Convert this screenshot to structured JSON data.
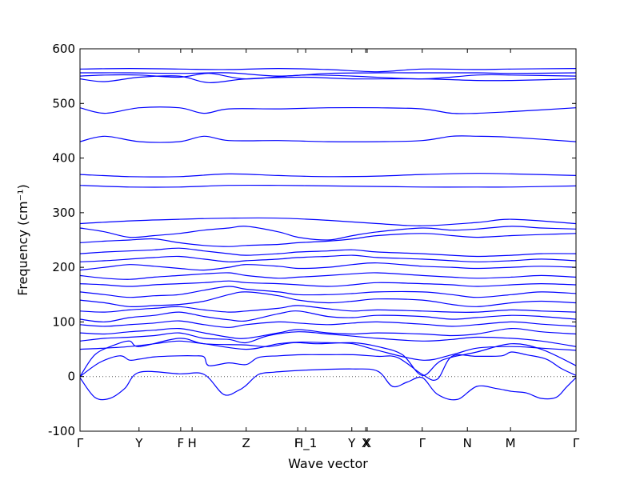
{
  "chart_data": {
    "type": "line",
    "title": "",
    "xlabel": "Wave vector",
    "ylabel": "Frequency (cm⁻¹)",
    "ylim": [
      -100,
      600
    ],
    "yticks": [
      -100,
      0,
      100,
      200,
      300,
      400,
      500,
      600
    ],
    "xlim": [
      0,
      1
    ],
    "grid": false,
    "legend": "none",
    "line_color": "#0000ff",
    "zero_line": {
      "y": 0,
      "style": "dotted",
      "color": "#555555"
    },
    "high_symmetry_points": [
      {
        "label": "Γ",
        "x": 0.0
      },
      {
        "label": "Y",
        "x": 0.119
      },
      {
        "label": "F",
        "x": 0.203
      },
      {
        "label": "H",
        "x": 0.226
      },
      {
        "label": "Z",
        "x": 0.335
      },
      {
        "label": "F",
        "x": 0.439
      },
      {
        "label": "H_1",
        "x": 0.455
      },
      {
        "label": "Y",
        "x": 0.548
      },
      {
        "label": "X",
        "x": 0.576
      },
      {
        "label": "X",
        "x": 0.579
      },
      {
        "label": "Γ",
        "x": 0.69
      },
      {
        "label": "N",
        "x": 0.781
      },
      {
        "label": "M",
        "x": 0.868
      },
      {
        "label": "Γ",
        "x": 1.0
      }
    ],
    "series": [
      {
        "x": [
          0,
          0.03,
          0.06,
          0.09,
          0.12,
          0.2,
          0.25,
          0.29,
          0.32,
          0.335,
          0.36,
          0.39,
          0.42,
          0.46,
          0.55,
          0.6,
          0.63,
          0.66,
          0.69,
          0.72,
          0.76,
          0.8,
          0.84,
          0.87,
          0.9,
          0.93,
          0.96,
          0.98,
          1.0
        ],
        "y": [
          -2,
          -38,
          -40,
          -22,
          8,
          5,
          4,
          -33,
          -25,
          -16,
          4,
          8,
          10,
          12,
          14,
          10,
          -18,
          -10,
          -2,
          -32,
          -42,
          -18,
          -22,
          -27,
          -30,
          -40,
          -38,
          -20,
          -2
        ]
      },
      {
        "x": [
          0,
          0.04,
          0.08,
          0.1,
          0.12,
          0.15,
          0.2,
          0.23,
          0.25,
          0.26,
          0.3,
          0.335,
          0.36,
          0.4,
          0.45,
          0.5,
          0.55,
          0.6,
          0.64,
          0.69,
          0.72,
          0.75,
          0.8,
          0.85,
          0.87,
          0.9,
          0.94,
          0.97,
          1.0
        ],
        "y": [
          0,
          26,
          38,
          30,
          32,
          36,
          38,
          38,
          36,
          20,
          25,
          22,
          35,
          38,
          40,
          40,
          40,
          37,
          35,
          4,
          -5,
          37,
          37,
          38,
          45,
          40,
          32,
          15,
          2
        ]
      },
      {
        "x": [
          0,
          0.03,
          0.07,
          0.1,
          0.12,
          0.2,
          0.25,
          0.33,
          0.38,
          0.43,
          0.48,
          0.55,
          0.6,
          0.65,
          0.69,
          0.73,
          0.8,
          0.87,
          0.93,
          1.0
        ],
        "y": [
          0,
          40,
          58,
          65,
          55,
          70,
          60,
          58,
          55,
          62,
          60,
          62,
          55,
          40,
          2,
          30,
          45,
          60,
          50,
          20
        ]
      },
      {
        "x": [
          0,
          0.05,
          0.1,
          0.15,
          0.2,
          0.25,
          0.335,
          0.4,
          0.44,
          0.5,
          0.55,
          0.6,
          0.69,
          0.75,
          0.8,
          0.87,
          0.93,
          1.0
        ],
        "y": [
          50,
          52,
          55,
          60,
          65,
          60,
          50,
          60,
          63,
          62,
          60,
          48,
          30,
          40,
          52,
          55,
          52,
          48
        ]
      },
      {
        "x": [
          0,
          0.05,
          0.1,
          0.15,
          0.2,
          0.25,
          0.3,
          0.335,
          0.38,
          0.44,
          0.5,
          0.55,
          0.6,
          0.69,
          0.75,
          0.8,
          0.87,
          0.93,
          1.0
        ],
        "y": [
          65,
          70,
          72,
          75,
          80,
          70,
          68,
          62,
          75,
          82,
          78,
          74,
          70,
          65,
          68,
          72,
          70,
          65,
          55
        ]
      },
      {
        "x": [
          0,
          0.05,
          0.1,
          0.15,
          0.2,
          0.25,
          0.3,
          0.335,
          0.4,
          0.44,
          0.5,
          0.55,
          0.6,
          0.69,
          0.75,
          0.8,
          0.87,
          0.93,
          1.0
        ],
        "y": [
          80,
          78,
          82,
          85,
          88,
          80,
          72,
          70,
          80,
          86,
          80,
          78,
          80,
          78,
          75,
          78,
          88,
          82,
          78
        ]
      },
      {
        "x": [
          0,
          0.05,
          0.1,
          0.15,
          0.2,
          0.25,
          0.3,
          0.335,
          0.4,
          0.44,
          0.5,
          0.55,
          0.6,
          0.69,
          0.75,
          0.8,
          0.87,
          0.93,
          1.0
        ],
        "y": [
          95,
          92,
          95,
          98,
          102,
          95,
          90,
          95,
          100,
          98,
          95,
          98,
          100,
          96,
          92,
          95,
          100,
          96,
          92
        ]
      },
      {
        "x": [
          0,
          0.05,
          0.1,
          0.15,
          0.2,
          0.25,
          0.3,
          0.335,
          0.4,
          0.44,
          0.5,
          0.55,
          0.6,
          0.69,
          0.75,
          0.8,
          0.87,
          0.93,
          1.0
        ],
        "y": [
          105,
          100,
          108,
          112,
          118,
          110,
          104,
          102,
          115,
          120,
          110,
          108,
          112,
          110,
          105,
          108,
          112,
          110,
          105
        ]
      },
      {
        "x": [
          0,
          0.05,
          0.1,
          0.15,
          0.2,
          0.25,
          0.3,
          0.335,
          0.4,
          0.44,
          0.5,
          0.55,
          0.6,
          0.69,
          0.75,
          0.8,
          0.87,
          0.93,
          1.0
        ],
        "y": [
          120,
          118,
          122,
          125,
          128,
          122,
          118,
          120,
          125,
          130,
          124,
          120,
          122,
          120,
          118,
          118,
          122,
          120,
          118
        ]
      },
      {
        "x": [
          0,
          0.05,
          0.1,
          0.15,
          0.2,
          0.25,
          0.3,
          0.335,
          0.4,
          0.44,
          0.5,
          0.55,
          0.6,
          0.69,
          0.75,
          0.8,
          0.87,
          0.93,
          1.0
        ],
        "y": [
          140,
          135,
          128,
          130,
          132,
          138,
          150,
          155,
          148,
          140,
          135,
          138,
          142,
          140,
          132,
          128,
          135,
          138,
          135
        ]
      },
      {
        "x": [
          0,
          0.05,
          0.1,
          0.15,
          0.2,
          0.25,
          0.3,
          0.335,
          0.4,
          0.44,
          0.5,
          0.55,
          0.6,
          0.69,
          0.75,
          0.8,
          0.87,
          0.93,
          1.0
        ],
        "y": [
          155,
          150,
          145,
          148,
          150,
          158,
          165,
          160,
          155,
          150,
          150,
          152,
          155,
          155,
          150,
          145,
          150,
          155,
          152
        ]
      },
      {
        "x": [
          0,
          0.05,
          0.1,
          0.15,
          0.2,
          0.25,
          0.3,
          0.335,
          0.4,
          0.44,
          0.5,
          0.55,
          0.6,
          0.69,
          0.75,
          0.8,
          0.87,
          0.93,
          1.0
        ],
        "y": [
          170,
          168,
          165,
          168,
          170,
          172,
          175,
          172,
          170,
          168,
          165,
          168,
          172,
          170,
          168,
          165,
          168,
          170,
          168
        ]
      },
      {
        "x": [
          0,
          0.05,
          0.1,
          0.15,
          0.2,
          0.25,
          0.3,
          0.335,
          0.4,
          0.44,
          0.5,
          0.55,
          0.6,
          0.69,
          0.75,
          0.8,
          0.87,
          0.93,
          1.0
        ],
        "y": [
          185,
          180,
          178,
          182,
          185,
          188,
          190,
          185,
          180,
          182,
          185,
          188,
          190,
          185,
          182,
          180,
          182,
          185,
          182
        ]
      },
      {
        "x": [
          0,
          0.05,
          0.1,
          0.15,
          0.2,
          0.25,
          0.3,
          0.335,
          0.4,
          0.44,
          0.5,
          0.55,
          0.6,
          0.69,
          0.75,
          0.8,
          0.87,
          0.93,
          1.0
        ],
        "y": [
          195,
          200,
          205,
          202,
          198,
          195,
          200,
          205,
          202,
          198,
          200,
          205,
          208,
          202,
          200,
          198,
          200,
          202,
          200
        ]
      },
      {
        "x": [
          0,
          0.05,
          0.1,
          0.15,
          0.2,
          0.25,
          0.3,
          0.335,
          0.4,
          0.44,
          0.5,
          0.55,
          0.6,
          0.69,
          0.75,
          0.8,
          0.87,
          0.93,
          1.0
        ],
        "y": [
          210,
          212,
          215,
          218,
          220,
          215,
          210,
          212,
          215,
          218,
          220,
          222,
          218,
          215,
          212,
          210,
          212,
          215,
          212
        ]
      },
      {
        "x": [
          0,
          0.05,
          0.1,
          0.15,
          0.2,
          0.25,
          0.3,
          0.335,
          0.4,
          0.44,
          0.5,
          0.55,
          0.6,
          0.69,
          0.75,
          0.8,
          0.87,
          0.93,
          1.0
        ],
        "y": [
          225,
          228,
          230,
          232,
          235,
          230,
          225,
          222,
          225,
          228,
          230,
          232,
          228,
          225,
          222,
          220,
          222,
          225,
          225
        ]
      },
      {
        "x": [
          0,
          0.05,
          0.1,
          0.15,
          0.2,
          0.25,
          0.3,
          0.335,
          0.4,
          0.44,
          0.5,
          0.55,
          0.6,
          0.69,
          0.75,
          0.8,
          0.87,
          0.93,
          1.0
        ],
        "y": [
          245,
          248,
          250,
          252,
          245,
          240,
          238,
          240,
          242,
          245,
          248,
          252,
          258,
          262,
          258,
          255,
          258,
          260,
          262
        ]
      },
      {
        "x": [
          0,
          0.05,
          0.1,
          0.15,
          0.2,
          0.25,
          0.3,
          0.335,
          0.4,
          0.44,
          0.5,
          0.55,
          0.6,
          0.69,
          0.75,
          0.8,
          0.87,
          0.93,
          1.0
        ],
        "y": [
          272,
          265,
          255,
          258,
          262,
          268,
          272,
          275,
          265,
          255,
          250,
          258,
          265,
          272,
          268,
          270,
          275,
          272,
          270
        ]
      },
      {
        "x": [
          0,
          0.1,
          0.2,
          0.3,
          0.4,
          0.5,
          0.6,
          0.69,
          0.8,
          0.87,
          1.0
        ],
        "y": [
          280,
          285,
          288,
          290,
          290,
          286,
          280,
          276,
          282,
          288,
          280
        ]
      },
      {
        "x": [
          0,
          0.1,
          0.2,
          0.3,
          0.4,
          0.5,
          0.6,
          0.69,
          0.8,
          0.87,
          1.0
        ],
        "y": [
          350,
          347,
          347,
          350,
          350,
          349,
          348,
          347,
          347,
          347,
          349
        ]
      },
      {
        "x": [
          0,
          0.1,
          0.2,
          0.3,
          0.4,
          0.5,
          0.6,
          0.69,
          0.8,
          0.87,
          1.0
        ],
        "y": [
          370,
          366,
          366,
          371,
          368,
          366,
          367,
          370,
          372,
          371,
          368
        ]
      },
      {
        "x": [
          0,
          0.05,
          0.12,
          0.2,
          0.25,
          0.3,
          0.4,
          0.5,
          0.6,
          0.69,
          0.75,
          0.8,
          0.87,
          1.0
        ],
        "y": [
          430,
          440,
          430,
          430,
          440,
          432,
          432,
          430,
          430,
          432,
          440,
          440,
          438,
          430
        ]
      },
      {
        "x": [
          0,
          0.05,
          0.12,
          0.2,
          0.25,
          0.3,
          0.4,
          0.5,
          0.6,
          0.69,
          0.75,
          0.8,
          0.87,
          1.0
        ],
        "y": [
          492,
          482,
          492,
          492,
          482,
          490,
          490,
          492,
          492,
          490,
          482,
          482,
          485,
          492
        ]
      },
      {
        "x": [
          0,
          0.05,
          0.12,
          0.2,
          0.26,
          0.335,
          0.45,
          0.55,
          0.69,
          0.8,
          0.87,
          1.0
        ],
        "y": [
          545,
          540,
          548,
          550,
          538,
          545,
          548,
          545,
          545,
          542,
          542,
          545
        ]
      },
      {
        "x": [
          0,
          0.05,
          0.12,
          0.2,
          0.26,
          0.335,
          0.45,
          0.55,
          0.69,
          0.8,
          0.87,
          1.0
        ],
        "y": [
          550,
          552,
          552,
          548,
          555,
          545,
          552,
          550,
          545,
          552,
          552,
          550
        ]
      },
      {
        "x": [
          0,
          0.1,
          0.2,
          0.3,
          0.4,
          0.5,
          0.6,
          0.69,
          0.8,
          0.87,
          1.0
        ],
        "y": [
          556,
          556,
          555,
          556,
          550,
          555,
          556,
          556,
          556,
          555,
          556
        ]
      },
      {
        "x": [
          0,
          0.1,
          0.2,
          0.3,
          0.4,
          0.5,
          0.6,
          0.69,
          0.8,
          0.87,
          1.0
        ],
        "y": [
          563,
          564,
          563,
          562,
          564,
          562,
          558,
          563,
          562,
          563,
          564
        ]
      }
    ]
  }
}
